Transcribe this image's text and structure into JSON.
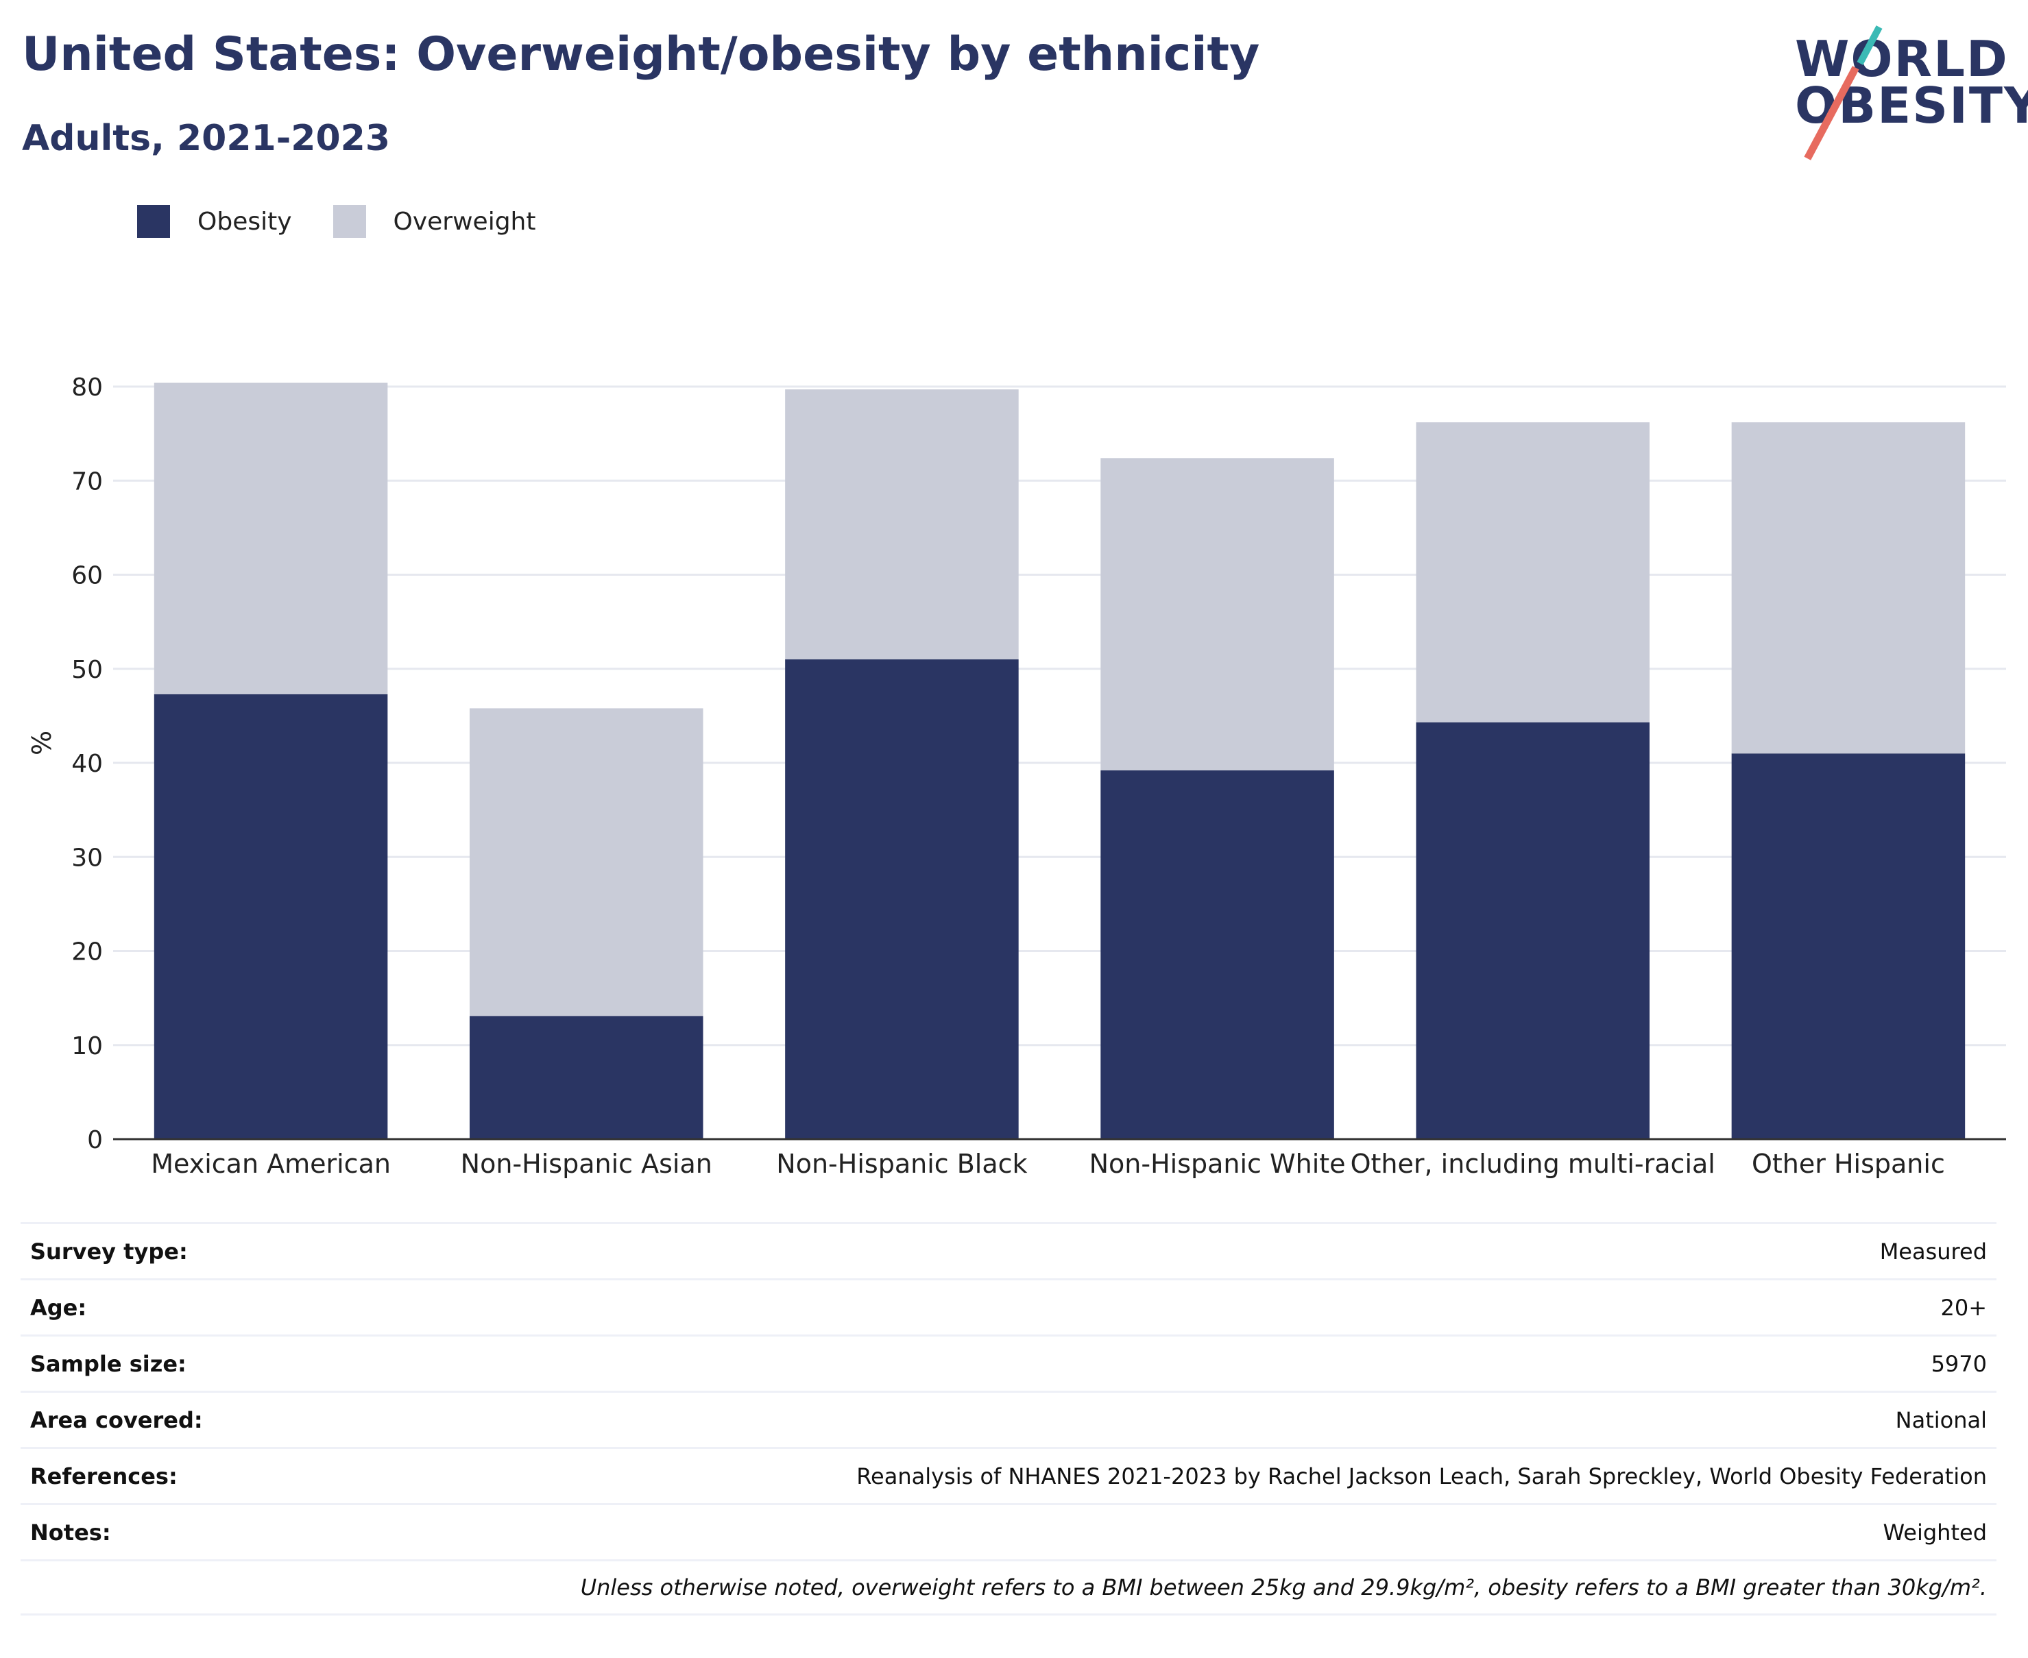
{
  "header": {
    "title": "United States: Overweight/obesity by ethnicity",
    "subtitle": "Adults, 2021-2023"
  },
  "logo": {
    "line1": "WORLD",
    "line2": "OBESITY",
    "colors": {
      "text": "#2a3563",
      "slash_top": "#3bbab5",
      "slash_bottom": "#e76b5f"
    }
  },
  "legend": [
    {
      "label": "Obesity",
      "color": "#2a3563"
    },
    {
      "label": "Overweight",
      "color": "#c9ccd8"
    }
  ],
  "chart_data": {
    "type": "bar",
    "stacked": true,
    "title": "United States: Overweight/obesity by ethnicity",
    "subtitle": "Adults, 2021-2023",
    "xlabel": "",
    "ylabel": "%",
    "ylim": [
      0,
      80
    ],
    "yticks": [
      0,
      10,
      20,
      30,
      40,
      50,
      60,
      70,
      80
    ],
    "grid": true,
    "legend_position": "top-left",
    "categories": [
      "Mexican American",
      "Non-Hispanic Asian",
      "Non-Hispanic Black",
      "Non-Hispanic White",
      "Other, including multi-racial",
      "Other Hispanic"
    ],
    "series": [
      {
        "name": "Obesity",
        "color": "#2a3563",
        "values": [
          47.3,
          13.1,
          51.0,
          39.2,
          44.3,
          41.0
        ]
      },
      {
        "name": "Overweight",
        "color": "#c9ccd8",
        "values": [
          33.1,
          32.7,
          28.7,
          33.2,
          31.9,
          35.2
        ]
      }
    ]
  },
  "info": [
    {
      "label": "Survey type:",
      "value": "Measured"
    },
    {
      "label": "Age:",
      "value": "20+"
    },
    {
      "label": "Sample size:",
      "value": "5970"
    },
    {
      "label": "Area covered:",
      "value": "National"
    },
    {
      "label": "References:",
      "value": "Reanalysis of NHANES 2021-2023 by Rachel Jackson Leach, Sarah Spreckley, World Obesity Federation"
    },
    {
      "label": "Notes:",
      "value": "Weighted"
    }
  ],
  "footnote": "Unless otherwise noted, overweight refers to a BMI between 25kg and 29.9kg/m², obesity refers to a BMI greater than 30kg/m²."
}
